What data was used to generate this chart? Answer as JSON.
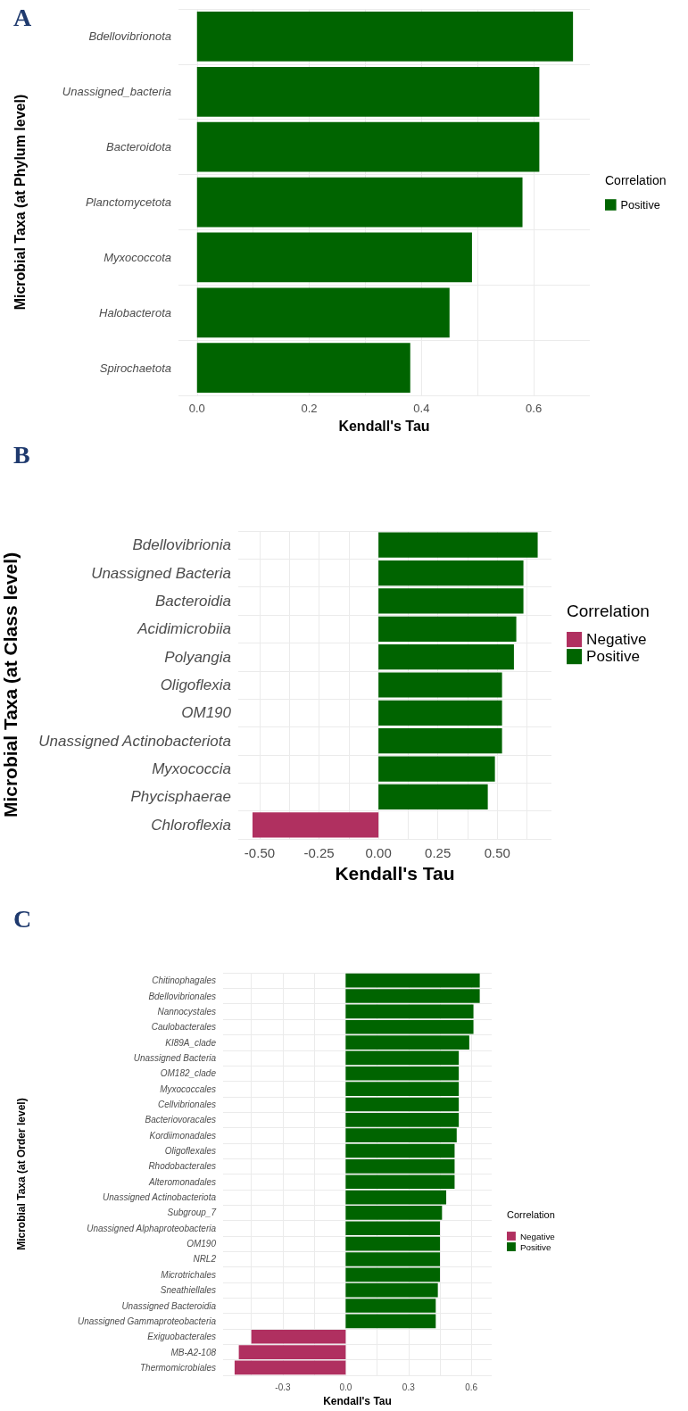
{
  "chart_data": [
    {
      "type": "bar",
      "orientation": "horizontal",
      "title": "A",
      "xlabel": "Kendall's Tau",
      "ylabel": "Microbial Taxa (at Phylum level)",
      "legend_title": "Correlation",
      "legend": "right",
      "grid": true,
      "categories": [
        "Bdellovibrionota",
        "Unassigned_bacteria",
        "Bacteroidota",
        "Planctomycetota",
        "Myxococcota",
        "Halobacterota",
        "Spirochaetota"
      ],
      "series": [
        {
          "name": "Positive",
          "color": "#006400",
          "values": [
            0.67,
            0.61,
            0.61,
            0.58,
            0.49,
            0.45,
            0.38
          ]
        }
      ],
      "xlim": [
        -0.033,
        0.7
      ],
      "xticks": [
        {
          "value": 0,
          "label": "0.0"
        },
        {
          "value": 0.1,
          "label": null
        },
        {
          "value": 0.2,
          "label": "0.2"
        },
        {
          "value": 0.3,
          "label": null
        },
        {
          "value": 0.4,
          "label": "0.4"
        },
        {
          "value": 0.5,
          "label": null
        },
        {
          "value": 0.6,
          "label": "0.6"
        }
      ]
    },
    {
      "type": "bar",
      "orientation": "horizontal",
      "stacked": true,
      "title": "B",
      "xlabel": "Kendall's Tau",
      "ylabel": "Microbial Taxa (at Class level)",
      "legend_title": "Correlation",
      "legend": "right",
      "grid": true,
      "categories": [
        "Bdellovibrionia",
        "Unassigned Bacteria",
        "Bacteroidia",
        "Acidimicrobiia",
        "Polyangia",
        "Oligoflexia",
        "OM190",
        "Unassigned Actinobacteriota",
        "Myxococcia",
        "Phycisphaerae",
        "Chloroflexia"
      ],
      "series": [
        {
          "name": "Negative",
          "color": "#b03060",
          "values": [
            null,
            null,
            null,
            null,
            null,
            null,
            null,
            null,
            null,
            null,
            -0.53
          ]
        },
        {
          "name": "Positive",
          "color": "#006400",
          "values": [
            0.67,
            0.61,
            0.61,
            0.58,
            0.57,
            0.52,
            0.52,
            0.52,
            0.49,
            0.46,
            null
          ]
        }
      ],
      "xlim": [
        -0.59,
        0.728
      ],
      "xticks": [
        {
          "value": -0.5,
          "label": "-0.50"
        },
        {
          "value": -0.375,
          "label": null
        },
        {
          "value": -0.25,
          "label": "-0.25"
        },
        {
          "value": -0.125,
          "label": null
        },
        {
          "value": 0,
          "label": "0.00"
        },
        {
          "value": 0.125,
          "label": null
        },
        {
          "value": 0.25,
          "label": "0.25"
        },
        {
          "value": 0.375,
          "label": null
        },
        {
          "value": 0.5,
          "label": "0.50"
        },
        {
          "value": 0.625,
          "label": null
        }
      ]
    },
    {
      "type": "bar",
      "orientation": "horizontal",
      "stacked": true,
      "title": "C",
      "xlabel": "Kendall's Tau",
      "ylabel": "Microbial Taxa (at Order level)",
      "legend_title": "Correlation",
      "legend": "right",
      "grid": true,
      "categories": [
        "Chitinophagales",
        "Bdellovibrionales",
        "Nannocystales",
        "Caulobacterales",
        "KI89A_clade",
        "Unassigned Bacteria",
        "OM182_clade",
        "Myxococcales",
        "Cellvibrionales",
        "Bacteriovoracales",
        "Kordiimonadales",
        "Oligoflexales",
        "Rhodobacterales",
        "Alteromonadales",
        "Unassigned Actinobacteriota",
        "Subgroup_7",
        "Unassigned Alphaproteobacteria",
        "OM190",
        "NRL2",
        "Microtrichales",
        "Sneathiellales",
        "Unassigned Bacteroidia",
        "Unassigned Gammaproteobacteria",
        "Exiguobacterales",
        "MB-A2-108",
        "Thermomicrobiales"
      ],
      "series": [
        {
          "name": "Negative",
          "color": "#b03060",
          "values": [
            null,
            null,
            null,
            null,
            null,
            null,
            null,
            null,
            null,
            null,
            null,
            null,
            null,
            null,
            null,
            null,
            null,
            null,
            null,
            null,
            null,
            null,
            null,
            -0.45,
            -0.51,
            -0.53
          ]
        },
        {
          "name": "Positive",
          "color": "#006400",
          "values": [
            0.64,
            0.64,
            0.61,
            0.61,
            0.59,
            0.54,
            0.54,
            0.54,
            0.54,
            0.54,
            0.53,
            0.52,
            0.52,
            0.52,
            0.48,
            0.46,
            0.45,
            0.45,
            0.45,
            0.45,
            0.44,
            0.43,
            0.43,
            null,
            null,
            null
          ]
        }
      ],
      "xlim": [
        -0.585,
        0.697
      ],
      "xticks": [
        {
          "value": -0.45,
          "label": null
        },
        {
          "value": -0.3,
          "label": "-0.3"
        },
        {
          "value": -0.15,
          "label": null
        },
        {
          "value": 0,
          "label": "0.0"
        },
        {
          "value": 0.15,
          "label": null
        },
        {
          "value": 0.3,
          "label": "0.3"
        },
        {
          "value": 0.45,
          "label": null
        },
        {
          "value": 0.6,
          "label": "0.6"
        }
      ]
    }
  ]
}
